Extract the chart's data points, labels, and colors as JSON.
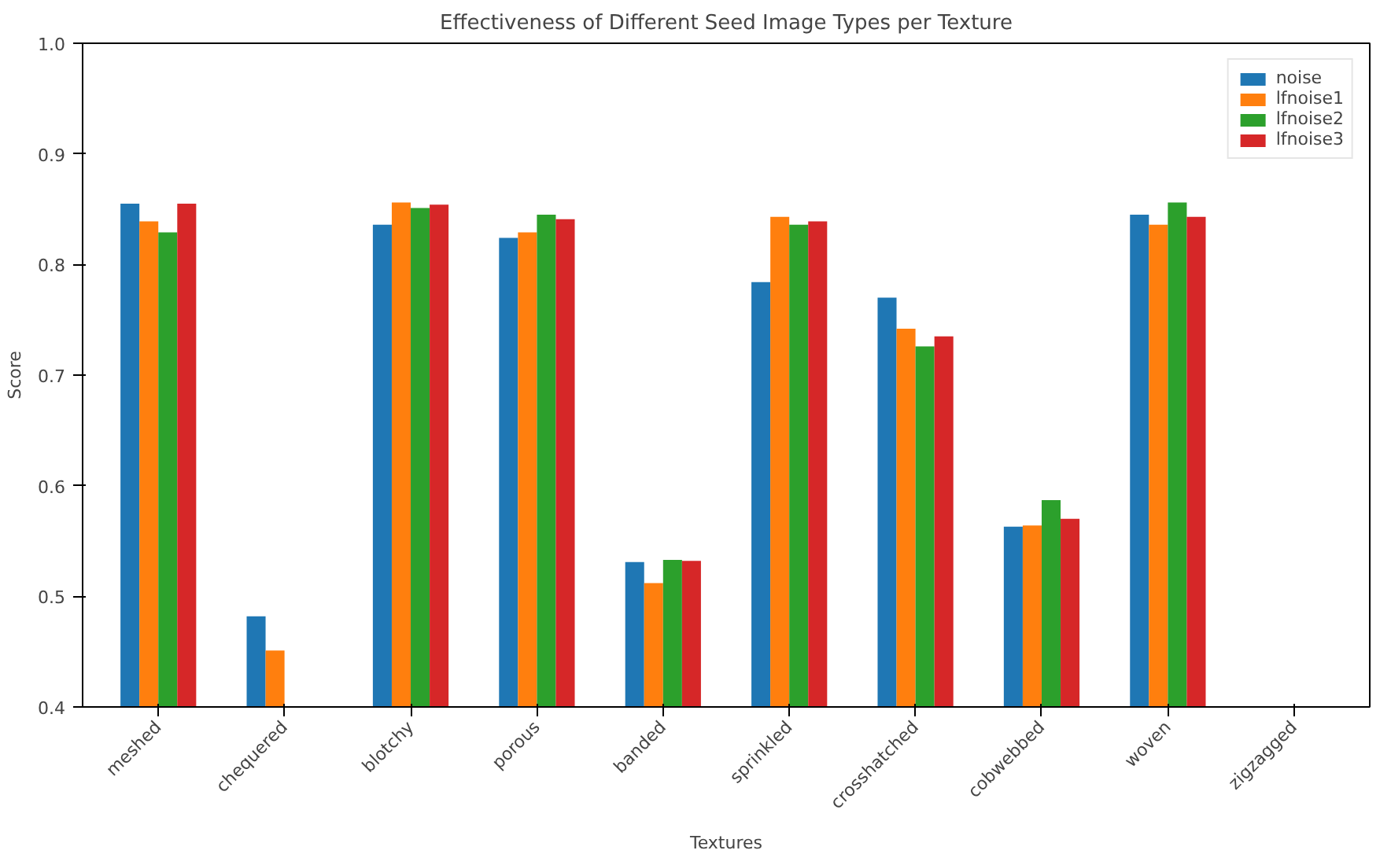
{
  "chart_data": {
    "type": "bar",
    "title": "Effectiveness of Different Seed Image Types per Texture",
    "xlabel": "Textures",
    "ylabel": "Score",
    "categories": [
      "meshed",
      "chequered",
      "blotchy",
      "porous",
      "banded",
      "sprinkled",
      "crosshatched",
      "cobwebbed",
      "woven",
      "zigzagged"
    ],
    "series": [
      {
        "name": "noise",
        "color": "#1f77b4",
        "values": [
          0.855,
          0.482,
          0.836,
          0.824,
          0.531,
          0.784,
          0.77,
          0.563,
          0.845,
          null
        ]
      },
      {
        "name": "lfnoise1",
        "color": "#ff7f0e",
        "values": [
          0.839,
          0.451,
          0.856,
          0.829,
          0.512,
          0.843,
          0.742,
          0.564,
          0.836,
          null
        ]
      },
      {
        "name": "lfnoise2",
        "color": "#2ca02c",
        "values": [
          0.829,
          null,
          0.851,
          0.845,
          0.533,
          0.836,
          0.726,
          0.587,
          0.856,
          null
        ]
      },
      {
        "name": "lfnoise3",
        "color": "#d62728",
        "values": [
          0.855,
          null,
          0.854,
          0.841,
          0.532,
          0.839,
          0.735,
          0.57,
          0.843,
          null
        ]
      }
    ],
    "ylim": [
      0.4,
      1.0
    ],
    "yticks": [
      0.4,
      0.5,
      0.6,
      0.7,
      0.8,
      0.9,
      {
        "value": 1.0,
        "label": "1.0"
      }
    ],
    "grid": false,
    "legend": "top right"
  }
}
